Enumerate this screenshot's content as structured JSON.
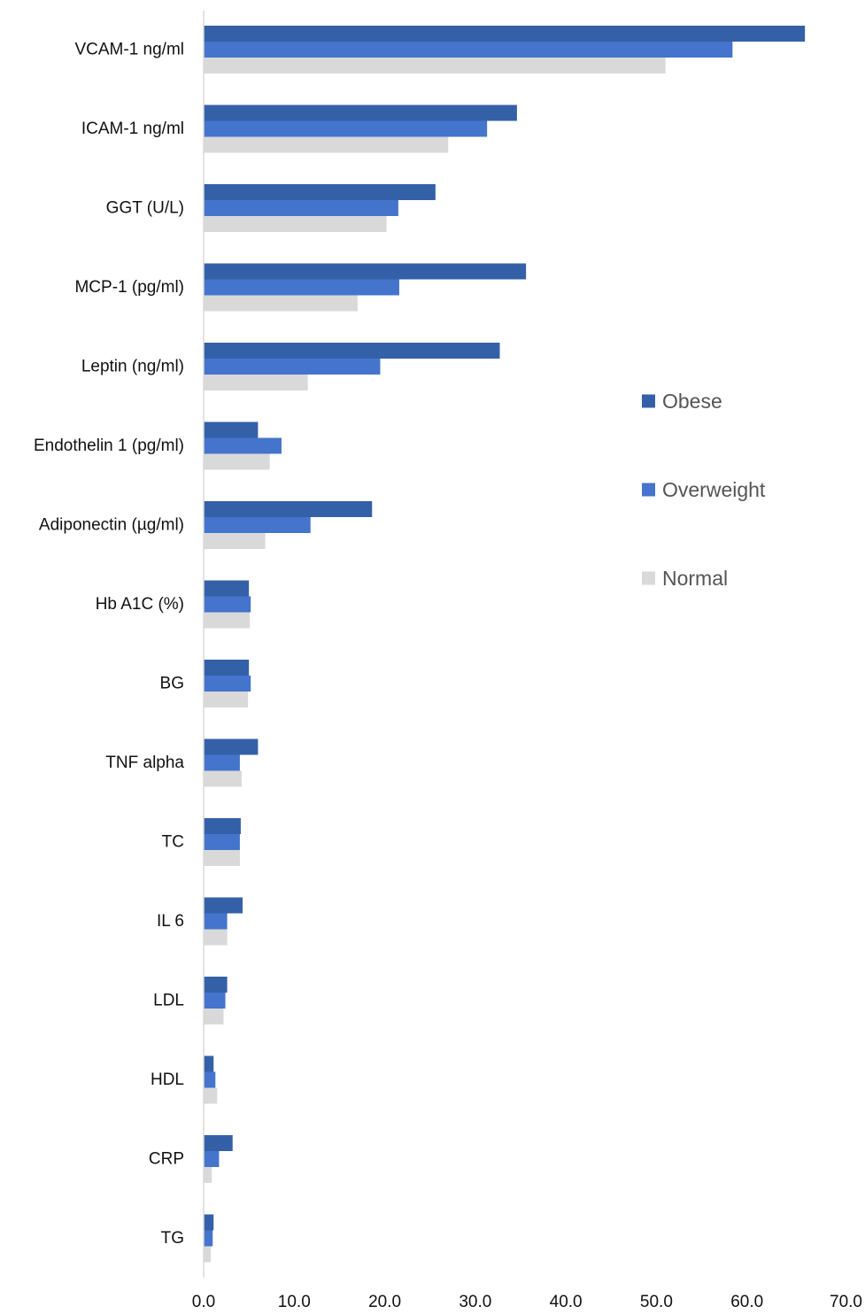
{
  "chart_data": {
    "type": "bar",
    "orientation": "horizontal",
    "categories": [
      "VCAM-1 ng/ml",
      "ICAM-1 ng/ml",
      "GGT    (U/L)",
      "MCP-1 (pg/ml)",
      "Leptin (ng/ml)",
      "Endothelin 1 (pg/ml)",
      "Adiponectin (µg/ml)",
      "Hb A1C (%)",
      "BG",
      "TNF alpha",
      "TC",
      "IL 6",
      "LDL",
      "HDL",
      "CRP",
      "TG"
    ],
    "series": [
      {
        "name": "Obese",
        "color": "#3460A8",
        "values": [
          66.4,
          34.6,
          25.6,
          35.6,
          32.7,
          6.0,
          18.6,
          5.0,
          5.0,
          6.0,
          4.1,
          4.3,
          2.6,
          1.1,
          3.2,
          1.1
        ]
      },
      {
        "name": "Overweight",
        "color": "#4474CC",
        "values": [
          58.4,
          31.3,
          21.5,
          21.6,
          19.5,
          8.6,
          11.8,
          5.2,
          5.2,
          4.0,
          4.0,
          2.6,
          2.4,
          1.3,
          1.7,
          1.0
        ]
      },
      {
        "name": "Normal",
        "color": "#D9D9D9",
        "values": [
          51.0,
          27.0,
          20.2,
          17.0,
          11.5,
          7.3,
          6.8,
          5.1,
          4.9,
          4.2,
          4.0,
          2.6,
          2.2,
          1.5,
          0.9,
          0.8
        ]
      }
    ],
    "x_ticks": [
      "0.0",
      "10.0",
      "20.0",
      "30.0",
      "40.0",
      "50.0",
      "60.0",
      "70.0"
    ],
    "xlim": [
      0,
      70
    ],
    "grid": false,
    "legend_position": "right"
  }
}
